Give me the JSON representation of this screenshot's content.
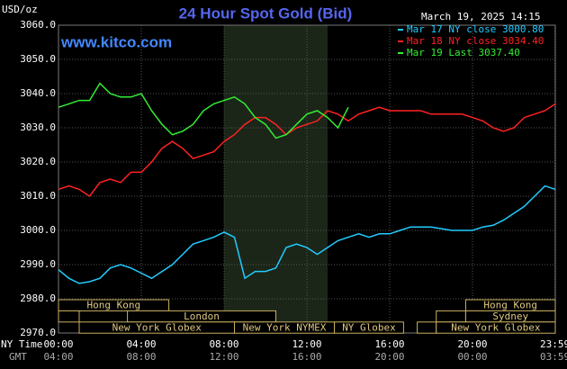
{
  "chart_data": {
    "type": "line",
    "title": "24 Hour Spot Gold (Bid)",
    "subtitle": "March 19, 2025 14:15",
    "source": "www.kitco.com",
    "y_label": "USD/oz",
    "x_label": "NY Time",
    "x2_label": "GMT",
    "x": [
      0,
      0.5,
      1,
      1.5,
      2,
      2.5,
      3,
      3.5,
      4,
      4.5,
      5,
      5.5,
      6,
      6.5,
      7,
      7.5,
      8,
      8.5,
      9,
      9.5,
      10,
      10.5,
      11,
      11.5,
      12,
      12.5,
      13,
      13.5,
      14,
      14.5,
      15,
      15.5,
      16,
      16.5,
      17,
      17.5,
      18,
      18.5,
      19,
      19.5,
      20,
      20.5,
      21,
      21.5,
      22,
      22.5,
      23,
      23.5,
      24
    ],
    "series": [
      {
        "name": "Mar 17 NY close 3000.80",
        "color": "#22ccff",
        "values": [
          2988.5,
          2986,
          2984.5,
          2985,
          2986,
          2989,
          2990,
          2989,
          2987.5,
          2986,
          2988,
          2990,
          2993,
          2996,
          2997,
          2998,
          2999.5,
          2998,
          2986,
          2988,
          2988,
          2989,
          2995,
          2996,
          2995,
          2993,
          2995,
          2997,
          2998,
          2999,
          2998,
          2999,
          2999,
          3000,
          3001,
          3001,
          3001,
          3000.5,
          3000,
          3000,
          3000,
          3001,
          3001.5,
          3003,
          3005,
          3007,
          3010,
          3013,
          3012
        ]
      },
      {
        "name": "Mar 18 NY close 3034.40",
        "color": "#ff2222",
        "values": [
          3012,
          3013,
          3012,
          3010,
          3014,
          3015,
          3014,
          3017,
          3017,
          3020,
          3024,
          3026,
          3024,
          3021,
          3022,
          3023,
          3026,
          3028,
          3031,
          3033,
          3033,
          3031,
          3028,
          3030,
          3031,
          3032,
          3035,
          3034,
          3032,
          3034,
          3035,
          3036,
          3035,
          3035,
          3035,
          3035,
          3034,
          3034,
          3034,
          3034,
          3033,
          3032,
          3030,
          3029,
          3030,
          3033,
          3034,
          3035,
          3037
        ]
      },
      {
        "name": "Mar 19 Last 3037.40",
        "color": "#33ee33",
        "values": [
          3036,
          3037,
          3038,
          3038,
          3043,
          3040,
          3039,
          3039,
          3040,
          3035,
          3031,
          3028,
          3029,
          3031,
          3035,
          3037,
          3038,
          3039,
          3037,
          3033,
          3031,
          3027,
          3028,
          3031,
          3034,
          3035,
          3033,
          3030,
          3036,
          null,
          null,
          null,
          null,
          null,
          null,
          null,
          null,
          null,
          null,
          null,
          null,
          null,
          null,
          null,
          null,
          null,
          null,
          null,
          null
        ]
      }
    ],
    "xlim": [
      0,
      24
    ],
    "xticks": [
      {
        "value": 0,
        "label": "00:00"
      },
      {
        "value": 4,
        "label": "04:00"
      },
      {
        "value": 8,
        "label": "08:00"
      },
      {
        "value": 12,
        "label": "12:00"
      },
      {
        "value": 16,
        "label": "16:00"
      },
      {
        "value": 20,
        "label": "20:00"
      },
      {
        "value": 23.98,
        "label": "23:59"
      }
    ],
    "gmt_labels": [
      "04:00",
      "08:00",
      "12:00",
      "16:00",
      "20:00",
      "00:00",
      "03:59"
    ],
    "ylim": [
      2970,
      3060
    ],
    "yticks": [
      {
        "value": 2970,
        "label": "2970.0"
      },
      {
        "value": 2980,
        "label": "2980.0"
      },
      {
        "value": 2990,
        "label": "2990.0"
      },
      {
        "value": 3000,
        "label": "3000.0"
      },
      {
        "value": 3010,
        "label": "3010.0"
      },
      {
        "value": 3020,
        "label": "3020.0"
      },
      {
        "value": 3030,
        "label": "3030.0"
      },
      {
        "value": 3040,
        "label": "3040.0"
      },
      {
        "value": 3050,
        "label": "3050.0"
      },
      {
        "value": 3060,
        "label": "3060.0"
      }
    ],
    "grid": true,
    "shade": [
      8,
      13
    ],
    "session_rows": [
      [
        {
          "label": "Hong Kong",
          "start": 0,
          "end": 5.33
        },
        {
          "label": "Hong Kong",
          "start": 19.67,
          "end": 24
        }
      ],
      [
        {
          "start": 0,
          "end": 1
        },
        {
          "label": "London",
          "start": 3.33,
          "end": 10.5
        },
        {
          "start": 18.25,
          "end": 19.67
        },
        {
          "label": "Sydney",
          "start": 19.67,
          "end": 24
        }
      ],
      [
        {
          "label": "New York Globex",
          "start": 1,
          "end": 8.5
        },
        {
          "label": "New York NYMEX",
          "start": 8.5,
          "end": 13.33
        },
        {
          "label": "NY Globex",
          "start": 13.33,
          "end": 16.67
        },
        {
          "start": 17.33,
          "end": 18.25
        },
        {
          "label": "New York Globex",
          "start": 18.25,
          "end": 24
        }
      ]
    ]
  }
}
